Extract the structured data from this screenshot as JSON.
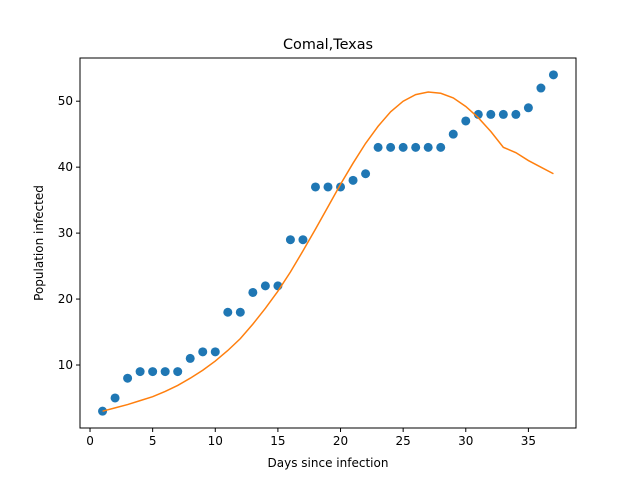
{
  "chart_data": {
    "type": "scatter",
    "title": "Comal,Texas",
    "xlabel": "Days since infection",
    "ylabel": "Population infected",
    "xlim": [
      -0.8,
      38.8
    ],
    "ylim": [
      0.45,
      56.55
    ],
    "xticks": [
      0,
      5,
      10,
      15,
      20,
      25,
      30,
      35
    ],
    "yticks": [
      10,
      20,
      30,
      40,
      50
    ],
    "grid": false,
    "series": [
      {
        "type": "scatter",
        "color": "#1f77b4",
        "x": [
          1,
          2,
          3,
          4,
          5,
          6,
          7,
          8,
          9,
          10,
          11,
          12,
          13,
          14,
          15,
          16,
          17,
          18,
          19,
          20,
          21,
          22,
          23,
          24,
          25,
          26,
          27,
          28,
          29,
          30,
          31,
          32,
          33,
          34,
          35,
          36,
          37
        ],
        "y": [
          3,
          5,
          8,
          9,
          9,
          9,
          9,
          11,
          12,
          12,
          18,
          18,
          21,
          22,
          22,
          29,
          29,
          37,
          37,
          37,
          38,
          39,
          43,
          43,
          43,
          43,
          43,
          43,
          45,
          47,
          48,
          48,
          48,
          48,
          49,
          52,
          54
        ]
      },
      {
        "type": "line",
        "color": "#ff7f0e",
        "x": [
          1,
          2,
          3,
          4,
          5,
          6,
          7,
          8,
          9,
          10,
          11,
          12,
          13,
          14,
          15,
          16,
          17,
          18,
          19,
          20,
          21,
          22,
          23,
          24,
          25,
          26,
          27,
          28,
          29,
          30,
          31,
          32,
          33,
          34,
          35,
          36,
          37
        ],
        "y": [
          3.0,
          3.5,
          4.0,
          4.6,
          5.2,
          6.0,
          6.9,
          8.0,
          9.2,
          10.6,
          12.2,
          14.0,
          16.2,
          18.6,
          21.2,
          24.1,
          27.3,
          30.6,
          34.0,
          37.4,
          40.6,
          43.6,
          46.2,
          48.4,
          50.0,
          51.0,
          51.4,
          51.2,
          50.5,
          49.2,
          47.5,
          45.4,
          43.0,
          42.2,
          41.0,
          40.0,
          39.0
        ]
      }
    ]
  }
}
